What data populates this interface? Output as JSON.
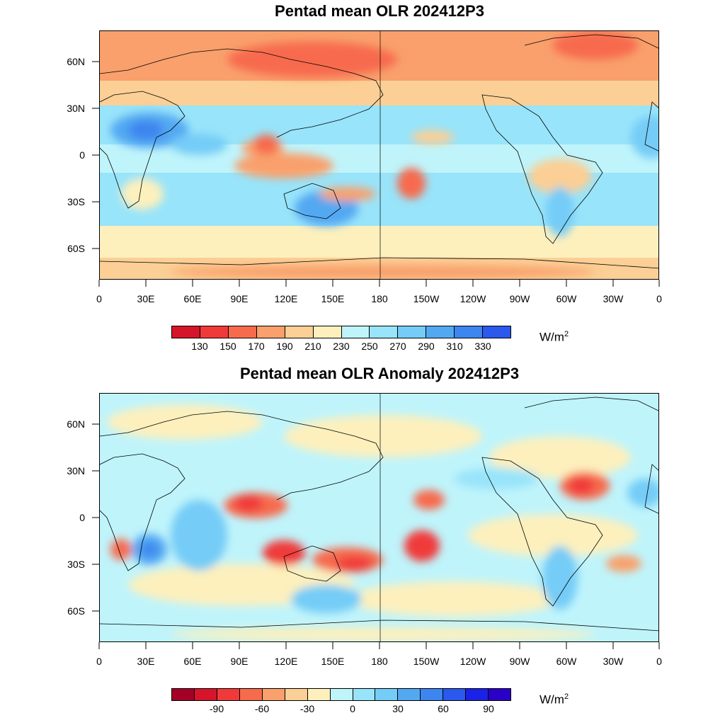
{
  "panels": [
    {
      "id": "olr",
      "title": "Pentad mean OLR 202412P3",
      "lon_labels": [
        "0",
        "30E",
        "60E",
        "90E",
        "120E",
        "150E",
        "180",
        "150W",
        "120W",
        "90W",
        "60W",
        "30W",
        "0"
      ],
      "lat_labels": [
        "60N",
        "30N",
        "0",
        "30S",
        "60S"
      ],
      "colorbar": {
        "colors": [
          "#d7152a",
          "#f03a3a",
          "#f76b4d",
          "#f9a06c",
          "#fbcf95",
          "#fdf0bd",
          "#bff4fb",
          "#98e4fa",
          "#74ccf7",
          "#53a8f2",
          "#3d85ef",
          "#2b58ed"
        ],
        "labels": [
          "130",
          "150",
          "170",
          "190",
          "210",
          "230",
          "250",
          "270",
          "290",
          "310",
          "330"
        ],
        "unit": "W/m",
        "unit_sup": "2"
      }
    },
    {
      "id": "anomaly",
      "title": "Pentad mean OLR Anomaly 202412P3",
      "lon_labels": [
        "0",
        "30E",
        "60E",
        "90E",
        "120E",
        "150E",
        "180",
        "150W",
        "120W",
        "90W",
        "60W",
        "30W",
        "0"
      ],
      "lat_labels": [
        "60N",
        "30N",
        "0",
        "30S",
        "60S"
      ],
      "colorbar": {
        "colors": [
          "#a50026",
          "#d7152a",
          "#f03a3a",
          "#f76b4d",
          "#f9a06c",
          "#fbcf95",
          "#fdf0bd",
          "#bff4fb",
          "#98e4fa",
          "#74ccf7",
          "#53a8f2",
          "#3d85ef",
          "#2b58ed",
          "#1a22e8",
          "#2a00c8"
        ],
        "labels": [
          "-90",
          "-60",
          "-30",
          "0",
          "30",
          "60",
          "90"
        ],
        "unit": "W/m",
        "unit_sup": "2"
      }
    }
  ]
}
